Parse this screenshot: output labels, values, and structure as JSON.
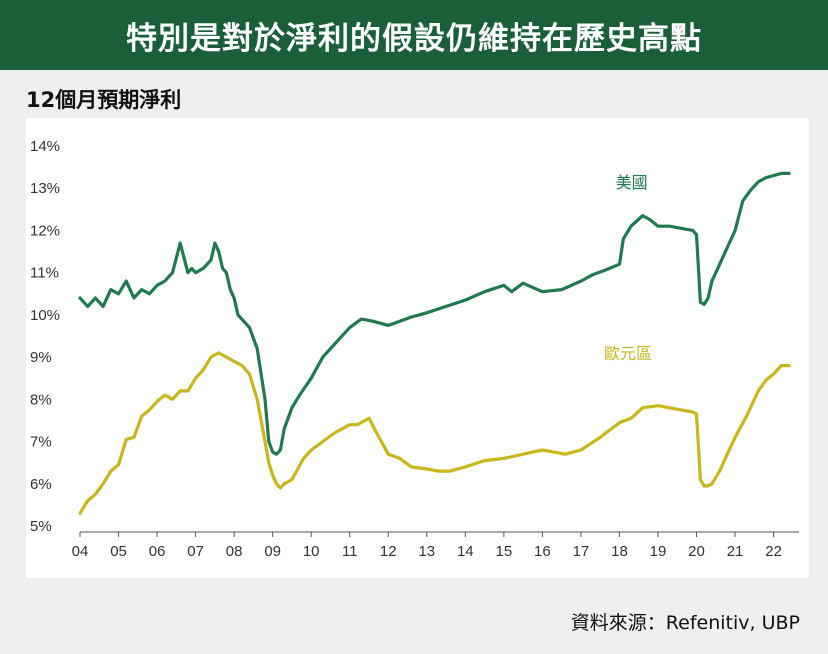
{
  "header": {
    "title": "特別是對於淨利的假設仍維持在歷史高點"
  },
  "subtitle": "12個月預期淨利",
  "source": "資料來源：Refenitiv, UBP",
  "colors": {
    "banner": "#1b5e3a",
    "us": "#1f7a4f",
    "eurozone": "#c8b61c",
    "axis": "#555555"
  },
  "chart_data": {
    "type": "line",
    "title": "12個月預期淨利",
    "xlabel": "",
    "ylabel": "",
    "x_tick_labels": [
      "04",
      "05",
      "06",
      "07",
      "08",
      "09",
      "10",
      "11",
      "12",
      "13",
      "14",
      "15",
      "16",
      "17",
      "18",
      "19",
      "20",
      "21",
      "22"
    ],
    "y_tick_labels": [
      "5%",
      "6%",
      "7%",
      "8%",
      "9%",
      "10%",
      "11%",
      "12%",
      "13%",
      "14%"
    ],
    "xlim": [
      2004.0,
      2022.4
    ],
    "ylim": [
      5,
      14
    ],
    "grid": false,
    "legend": "inline labels",
    "series": [
      {
        "name": "美國",
        "x": [
          2004.0,
          2004.2,
          2004.4,
          2004.6,
          2004.8,
          2005.0,
          2005.2,
          2005.4,
          2005.6,
          2005.8,
          2006.0,
          2006.2,
          2006.4,
          2006.6,
          2006.8,
          2006.9,
          2007.0,
          2007.2,
          2007.4,
          2007.5,
          2007.6,
          2007.7,
          2007.8,
          2007.9,
          2008.0,
          2008.1,
          2008.2,
          2008.4,
          2008.6,
          2008.8,
          2008.9,
          2009.0,
          2009.1,
          2009.2,
          2009.3,
          2009.5,
          2009.7,
          2010.0,
          2010.3,
          2010.6,
          2011.0,
          2011.3,
          2011.6,
          2012.0,
          2012.3,
          2012.6,
          2013.0,
          2013.5,
          2014.0,
          2014.5,
          2015.0,
          2015.2,
          2015.5,
          2016.0,
          2016.5,
          2017.0,
          2017.3,
          2017.6,
          2018.0,
          2018.1,
          2018.3,
          2018.6,
          2018.8,
          2019.0,
          2019.3,
          2019.6,
          2019.9,
          2020.0,
          2020.1,
          2020.2,
          2020.3,
          2020.4,
          2020.5,
          2020.7,
          2021.0,
          2021.2,
          2021.4,
          2021.6,
          2021.8,
          2022.0,
          2022.2,
          2022.4
        ],
        "values": [
          10.4,
          10.2,
          10.4,
          10.2,
          10.6,
          10.5,
          10.8,
          10.4,
          10.6,
          10.5,
          10.7,
          10.8,
          11.0,
          11.7,
          11.0,
          11.1,
          11.0,
          11.1,
          11.3,
          11.7,
          11.5,
          11.1,
          11.0,
          10.6,
          10.4,
          10.0,
          9.9,
          9.7,
          9.2,
          8.0,
          7.0,
          6.75,
          6.7,
          6.8,
          7.3,
          7.8,
          8.1,
          8.5,
          9.0,
          9.3,
          9.7,
          9.9,
          9.85,
          9.75,
          9.85,
          9.95,
          10.05,
          10.2,
          10.35,
          10.55,
          10.7,
          10.55,
          10.75,
          10.55,
          10.6,
          10.8,
          10.95,
          11.05,
          11.2,
          11.8,
          12.1,
          12.35,
          12.25,
          12.1,
          12.1,
          12.05,
          12.0,
          11.9,
          10.3,
          10.25,
          10.4,
          10.8,
          11.0,
          11.4,
          12.0,
          12.7,
          12.95,
          13.15,
          13.25,
          13.3,
          13.35,
          13.35
        ]
      },
      {
        "name": "歐元區",
        "x": [
          2004.0,
          2004.2,
          2004.4,
          2004.6,
          2004.8,
          2005.0,
          2005.2,
          2005.4,
          2005.6,
          2005.8,
          2006.0,
          2006.2,
          2006.4,
          2006.6,
          2006.8,
          2007.0,
          2007.2,
          2007.4,
          2007.6,
          2007.8,
          2008.0,
          2008.2,
          2008.4,
          2008.6,
          2008.7,
          2008.8,
          2008.9,
          2009.0,
          2009.1,
          2009.2,
          2009.3,
          2009.5,
          2009.8,
          2010.0,
          2010.3,
          2010.6,
          2010.8,
          2011.0,
          2011.2,
          2011.4,
          2011.5,
          2011.7,
          2012.0,
          2012.3,
          2012.6,
          2013.0,
          2013.3,
          2013.6,
          2014.0,
          2014.5,
          2015.0,
          2015.5,
          2016.0,
          2016.3,
          2016.6,
          2017.0,
          2017.5,
          2018.0,
          2018.3,
          2018.6,
          2019.0,
          2019.3,
          2019.6,
          2019.9,
          2020.0,
          2020.1,
          2020.2,
          2020.3,
          2020.4,
          2020.6,
          2020.8,
          2021.0,
          2021.3,
          2021.6,
          2021.8,
          2022.0,
          2022.2,
          2022.4
        ],
        "values": [
          5.3,
          5.6,
          5.75,
          6.0,
          6.3,
          6.45,
          7.05,
          7.1,
          7.6,
          7.75,
          7.95,
          8.1,
          8.0,
          8.2,
          8.2,
          8.5,
          8.7,
          9.0,
          9.1,
          9.0,
          8.9,
          8.8,
          8.6,
          8.0,
          7.5,
          7.0,
          6.5,
          6.2,
          6.0,
          5.9,
          6.0,
          6.1,
          6.6,
          6.8,
          7.0,
          7.2,
          7.3,
          7.4,
          7.4,
          7.5,
          7.55,
          7.2,
          6.7,
          6.6,
          6.4,
          6.35,
          6.3,
          6.3,
          6.4,
          6.55,
          6.6,
          6.7,
          6.8,
          6.75,
          6.7,
          6.8,
          7.1,
          7.45,
          7.55,
          7.8,
          7.85,
          7.8,
          7.75,
          7.7,
          7.65,
          6.1,
          5.95,
          5.95,
          6.0,
          6.3,
          6.7,
          7.1,
          7.6,
          8.2,
          8.45,
          8.6,
          8.8,
          8.8
        ]
      }
    ]
  }
}
